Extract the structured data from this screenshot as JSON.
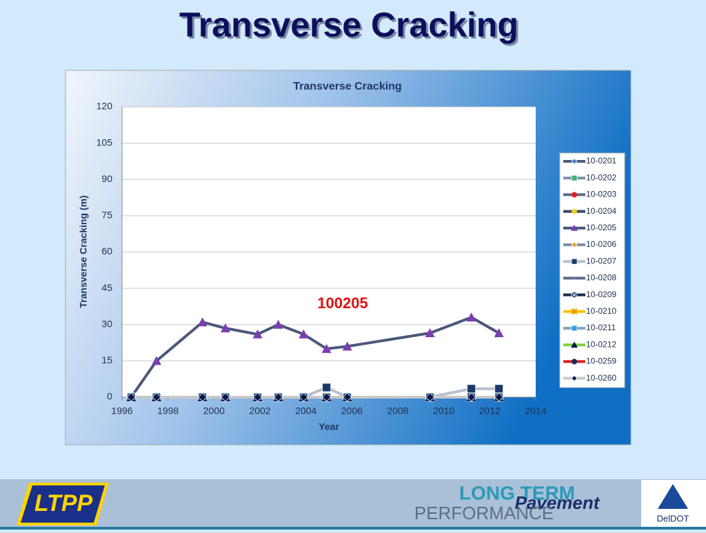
{
  "slide": {
    "title": "Transverse Cracking",
    "footer": {
      "logo_left": "LTPP",
      "line1": "LONG TERM",
      "line2": "Pavement",
      "line3": "PERFORMANCE",
      "logo_right": "DelDOT"
    }
  },
  "chart_data": {
    "type": "line",
    "title": "Transverse Cracking",
    "x_label": "Year",
    "y_label": "Transverse Cracking (m)",
    "annotation": "100205",
    "x": [
      1996.4,
      1997.5,
      1999.5,
      2000.5,
      2001.9,
      2002.8,
      2003.9,
      2004.9,
      2005.8,
      2009.4,
      2011.2,
      2012.4
    ],
    "xlim": [
      1996,
      2014
    ],
    "xticks": [
      1996,
      1998,
      2000,
      2002,
      2004,
      2006,
      2008,
      2010,
      2012,
      2014
    ],
    "ylim": [
      0,
      120
    ],
    "yticks": [
      0,
      15,
      30,
      45,
      60,
      75,
      90,
      105,
      120
    ],
    "grid": true,
    "series": [
      {
        "name": "10-0201",
        "color": "#4f5b7a",
        "marker_color": "#3a7dc4",
        "marker": "diamond",
        "values": [
          0,
          0,
          0,
          0,
          0,
          0,
          0,
          0,
          0,
          0,
          0,
          0
        ]
      },
      {
        "name": "10-0202",
        "color": "#7f8fa6",
        "marker_color": "#3cb371",
        "marker": "square",
        "values": [
          0,
          0,
          0,
          0,
          0,
          0,
          0,
          0,
          0,
          0,
          0,
          0
        ]
      },
      {
        "name": "10-0203",
        "color": "#5a6a8a",
        "marker_color": "#e02020",
        "marker": "circle",
        "values": [
          0,
          0,
          0,
          0,
          0,
          0,
          0,
          0,
          0,
          0,
          0,
          0
        ]
      },
      {
        "name": "10-0204",
        "color": "#3a4a6a",
        "marker_color": "#ffe000",
        "marker": "plus",
        "values": [
          0,
          0,
          0,
          0,
          0,
          0,
          0,
          0,
          0,
          0,
          0,
          0
        ]
      },
      {
        "name": "10-0205",
        "color": "#4a5878",
        "marker_color": "#7a3fb0",
        "marker": "triangle",
        "values": [
          0,
          15,
          31,
          28.5,
          26,
          30,
          26,
          20,
          21,
          26.5,
          33,
          26.5
        ]
      },
      {
        "name": "10-0206",
        "color": "#7f8fa6",
        "marker_color": "#f0a020",
        "marker": "diamond",
        "values": [
          0,
          0,
          0,
          0,
          0,
          0,
          0,
          0,
          0,
          0,
          0,
          0
        ]
      },
      {
        "name": "10-0207",
        "color": "#b8bfcc",
        "marker_color": "#1a3a6a",
        "marker": "square",
        "values": [
          0,
          0,
          0,
          0,
          0,
          0,
          0,
          4,
          0,
          0,
          3.5,
          3.5
        ]
      },
      {
        "name": "10-0208",
        "color": "#5a6a8a",
        "marker_color": "#6a7a9a",
        "marker": "dash",
        "values": [
          0,
          0,
          0,
          0,
          0,
          0,
          0,
          0,
          0,
          0,
          0,
          0
        ]
      },
      {
        "name": "10-0209",
        "color": "#1a2a4a",
        "marker_color": "#1a3a6a",
        "marker": "xsquare",
        "values": [
          0,
          0,
          0,
          0,
          0,
          0,
          0,
          0,
          0,
          0,
          0,
          0
        ]
      },
      {
        "name": "10-0210",
        "color": "#ffc000",
        "marker_color": "#e0a000",
        "marker": "asterisk",
        "values": [
          0,
          0,
          0,
          0,
          0,
          0,
          0,
          0,
          0,
          0,
          0,
          0
        ]
      },
      {
        "name": "10-0211",
        "color": "#8fa0b8",
        "marker_color": "#30a0e0",
        "marker": "square",
        "values": [
          0,
          0,
          0,
          0,
          0,
          0,
          0,
          0,
          0,
          0,
          0,
          0
        ]
      },
      {
        "name": "10-0212",
        "color": "#80d040",
        "marker_color": "#0a1a4a",
        "marker": "triangle",
        "values": [
          0,
          0,
          0,
          0,
          0,
          0,
          0,
          0,
          0,
          0,
          0,
          0
        ]
      },
      {
        "name": "10-0259",
        "color": "#e02020",
        "marker_color": "#1a2a5a",
        "marker": "circle",
        "values": [
          0,
          0,
          0,
          0,
          0,
          0,
          0,
          0,
          0,
          0,
          0,
          0
        ]
      },
      {
        "name": "10-0260",
        "color": "#c8c8c8",
        "marker_color": "#0a1a4a",
        "marker": "diamond",
        "values": [
          0,
          0,
          0,
          0,
          0,
          0,
          0,
          0,
          0,
          0,
          0,
          0
        ]
      }
    ]
  }
}
